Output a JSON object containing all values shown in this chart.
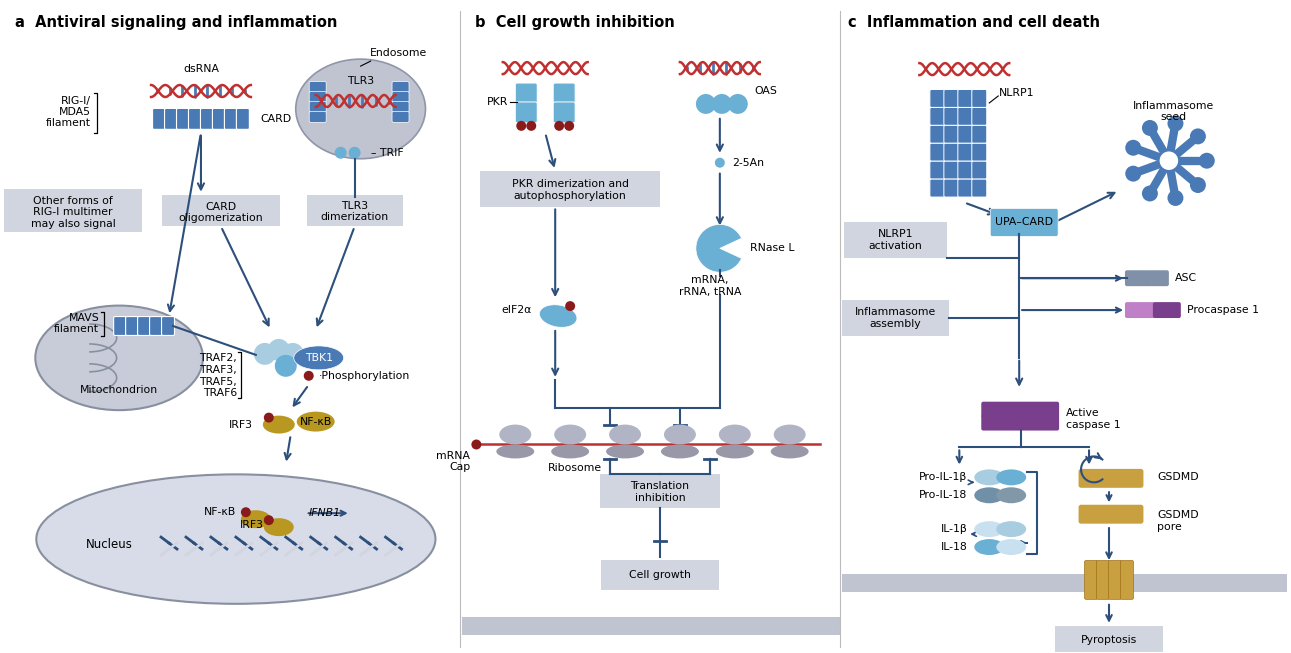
{
  "bg_color": "#ffffff",
  "title_a": "a  Antiviral signaling and inflammation",
  "title_b": "b  Cell growth inhibition",
  "title_c": "c  Inflammation and cell death",
  "title_fontsize": 10.5,
  "label_fontsize": 8.5,
  "small_fontsize": 7.8,
  "dark_blue": "#2d4f7c",
  "medium_blue": "#4a7ab5",
  "light_blue": "#6aafd4",
  "pale_blue": "#a8cce0",
  "very_light_blue": "#c8e0f0",
  "dark_red": "#8b1a1a",
  "gold": "#b89820",
  "gray_box": "#d0d5e0",
  "light_gray": "#e4e8f0",
  "mitochondrion_fill": "#c8ccd8",
  "endosome_fill": "#c0c4d0",
  "nucleus_fill": "#d8dce8",
  "purple": "#7a3f8c",
  "light_purple": "#c080c8",
  "tan": "#c8a040",
  "tan_dark": "#a87828",
  "gray_protein": "#8090a8",
  "gray_protein2": "#909098",
  "divider_color": "#bbbbbb"
}
